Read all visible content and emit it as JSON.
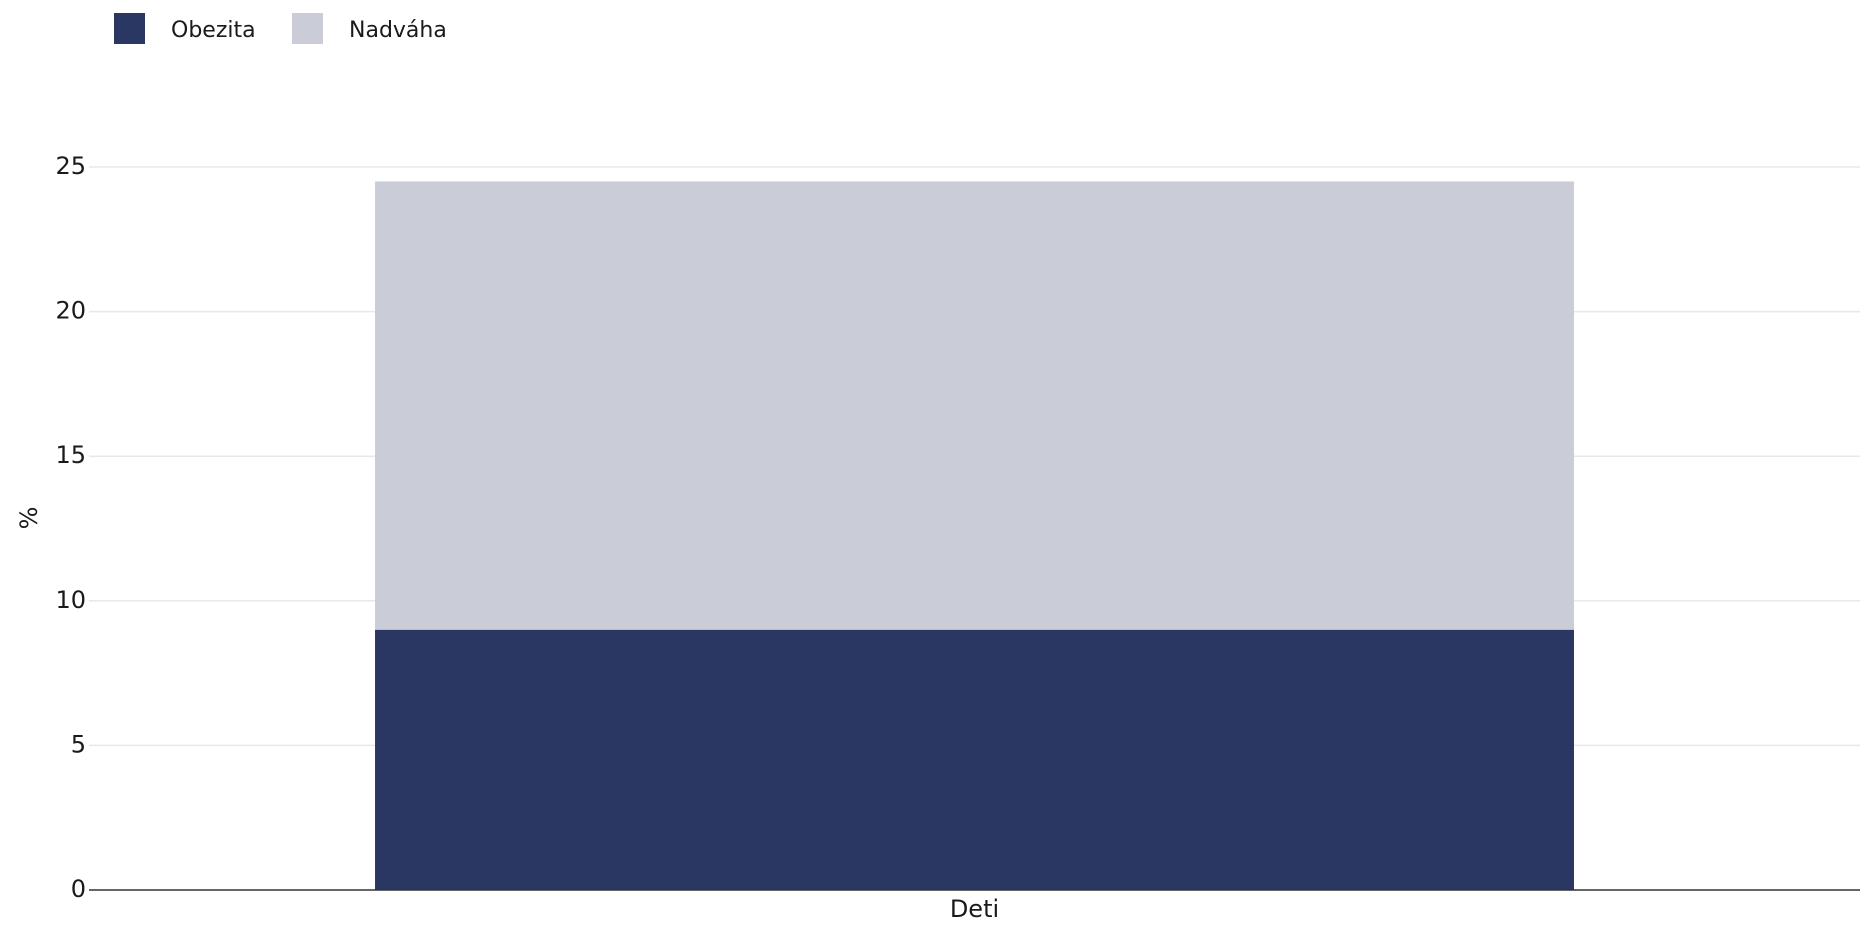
{
  "chart_data": {
    "type": "bar",
    "stacked": true,
    "categories": [
      "Deti"
    ],
    "series": [
      {
        "name": "Obezita",
        "values": [
          9.0
        ],
        "color": "#2b3763"
      },
      {
        "name": "Nadváha",
        "values": [
          15.5
        ],
        "color": "#cacdd8"
      }
    ],
    "ylabel": "%",
    "xlabel": "",
    "ylim": [
      0,
      25
    ],
    "yticks": [
      "0",
      "5",
      "10",
      "15",
      "20",
      "25"
    ],
    "grid": true,
    "legend_position": "top-left"
  }
}
